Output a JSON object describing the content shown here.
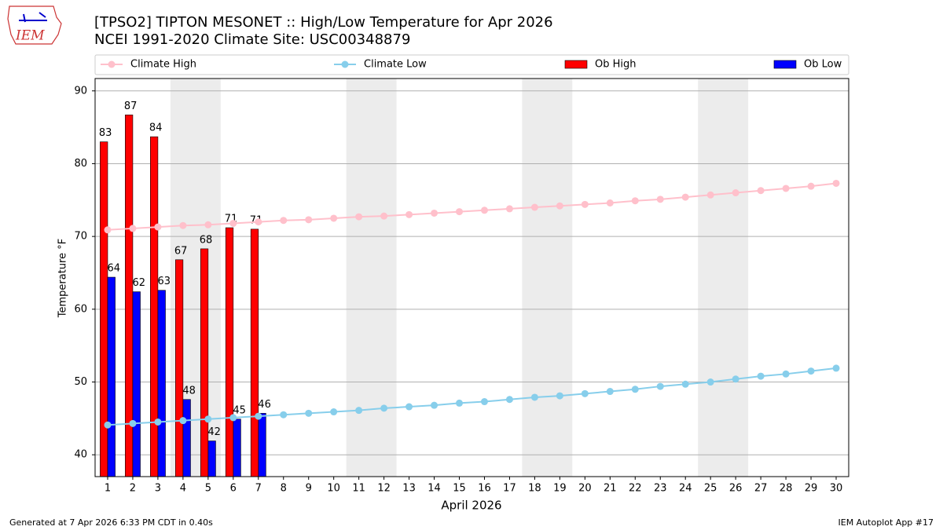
{
  "header": {
    "logo_text": "IEM"
  },
  "chart_data": {
    "type": "bar_line",
    "title": "[TPSO2] TIPTON MESONET :: High/Low Temperature for Apr 2026",
    "subtitle": "NCEI 1991-2020 Climate Site: USC00348879",
    "x_label": "April 2026",
    "y_label": "Temperature °F",
    "categories": [
      "1",
      "2",
      "3",
      "4",
      "5",
      "6",
      "7",
      "8",
      "9",
      "10",
      "11",
      "12",
      "13",
      "14",
      "15",
      "16",
      "17",
      "18",
      "19",
      "20",
      "21",
      "22",
      "23",
      "24",
      "25",
      "26",
      "27",
      "28",
      "29",
      "30"
    ],
    "ylim": [
      37,
      91.7
    ],
    "yticks": [
      40,
      50,
      60,
      70,
      80,
      90
    ],
    "grid": true,
    "legend": "top",
    "series": [
      {
        "name": "Climate High",
        "kind": "line",
        "color": "#ffc0cb",
        "values": [
          70.9,
          71.1,
          71.3,
          71.5,
          71.6,
          71.8,
          72.0,
          72.2,
          72.3,
          72.5,
          72.7,
          72.8,
          73.0,
          73.2,
          73.4,
          73.6,
          73.8,
          74.0,
          74.2,
          74.4,
          74.6,
          74.9,
          75.1,
          75.4,
          75.7,
          76.0,
          76.3,
          76.6,
          76.9,
          77.3
        ]
      },
      {
        "name": "Climate Low",
        "kind": "line",
        "color": "#87ceeb",
        "values": [
          44.1,
          44.3,
          44.5,
          44.7,
          44.9,
          45.1,
          45.3,
          45.5,
          45.7,
          45.9,
          46.1,
          46.4,
          46.6,
          46.8,
          47.1,
          47.3,
          47.6,
          47.9,
          48.1,
          48.4,
          48.7,
          49.0,
          49.4,
          49.7,
          50.0,
          50.4,
          50.8,
          51.1,
          51.5,
          51.9
        ]
      },
      {
        "name": "Ob High",
        "kind": "bar",
        "color": "#ff0000",
        "values": [
          83.0,
          86.7,
          83.7,
          66.8,
          68.3,
          71.2,
          71.0,
          null,
          null,
          null,
          null,
          null,
          null,
          null,
          null,
          null,
          null,
          null,
          null,
          null,
          null,
          null,
          null,
          null,
          null,
          null,
          null,
          null,
          null,
          null
        ],
        "value_labels": [
          "83",
          "87",
          "84",
          "67",
          "68",
          "71",
          "71",
          null,
          null,
          null,
          null,
          null,
          null,
          null,
          null,
          null,
          null,
          null,
          null,
          null,
          null,
          null,
          null,
          null,
          null,
          null,
          null,
          null,
          null,
          null
        ]
      },
      {
        "name": "Ob Low",
        "kind": "bar",
        "color": "#0000ff",
        "values": [
          64.4,
          62.4,
          62.6,
          47.6,
          41.9,
          44.9,
          45.7,
          null,
          null,
          null,
          null,
          null,
          null,
          null,
          null,
          null,
          null,
          null,
          null,
          null,
          null,
          null,
          null,
          null,
          null,
          null,
          null,
          null,
          null,
          null
        ],
        "value_labels": [
          "64",
          "62",
          "63",
          "48",
          "42",
          "45",
          "46",
          null,
          null,
          null,
          null,
          null,
          null,
          null,
          null,
          null,
          null,
          null,
          null,
          null,
          null,
          null,
          null,
          null,
          null,
          null,
          null,
          null,
          null,
          null
        ]
      }
    ]
  },
  "footer": {
    "left": "Generated at 7 Apr 2026 6:33 PM CDT in 0.40s",
    "right": "IEM Autoplot App #17"
  }
}
